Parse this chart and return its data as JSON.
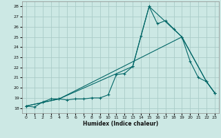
{
  "title": "",
  "xlabel": "Humidex (Indice chaleur)",
  "bg_color": "#cce8e4",
  "grid_color": "#aaccc8",
  "line_color": "#006666",
  "xlim": [
    -0.5,
    23.5
  ],
  "ylim": [
    17.5,
    28.5
  ],
  "xticks": [
    0,
    1,
    2,
    3,
    4,
    5,
    6,
    7,
    8,
    9,
    10,
    11,
    12,
    13,
    14,
    15,
    16,
    17,
    18,
    19,
    20,
    21,
    22,
    23
  ],
  "yticks": [
    18,
    19,
    20,
    21,
    22,
    23,
    24,
    25,
    26,
    27,
    28
  ],
  "line1_x": [
    0,
    1,
    2,
    3,
    4,
    5,
    6,
    7,
    8,
    9,
    10,
    11,
    12,
    13,
    14,
    15,
    16,
    17,
    18,
    19,
    20,
    21,
    22,
    23
  ],
  "line1_y": [
    18.2,
    18.1,
    18.6,
    18.9,
    18.9,
    18.8,
    18.9,
    18.9,
    19.0,
    19.0,
    19.3,
    21.3,
    21.4,
    22.1,
    25.1,
    28.0,
    26.3,
    26.6,
    25.8,
    25.0,
    22.6,
    21.0,
    20.6,
    19.5
  ],
  "line2_x": [
    0,
    4,
    13,
    15,
    19,
    22,
    23
  ],
  "line2_y": [
    18.2,
    18.9,
    22.1,
    28.0,
    25.0,
    20.6,
    19.5
  ],
  "line3_x": [
    0,
    4,
    19,
    22,
    23
  ],
  "line3_y": [
    18.2,
    18.9,
    25.0,
    20.6,
    19.5
  ]
}
